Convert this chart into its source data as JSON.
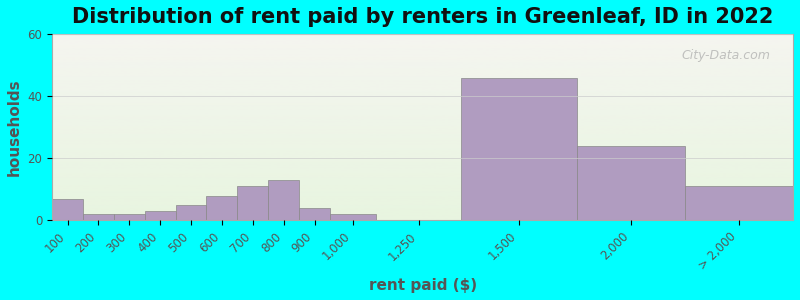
{
  "title": "Distribution of rent paid by renters in Greenleaf, ID in 2022",
  "xlabel": "rent paid ($)",
  "ylabel": "households",
  "background_color": "#00FFFF",
  "plot_bg_gradient_top": "#e8f5e0",
  "plot_bg_gradient_bottom": "#f5f5f0",
  "bar_color": "#b09cc0",
  "bar_edge_color": "#888888",
  "categories": [
    "100",
    "200",
    "300",
    "400",
    "500",
    "600",
    "700",
    "800",
    "900",
    "1,000",
    "1,250",
    "1,500",
    "2,000",
    "> 2,000"
  ],
  "values": [
    7,
    2,
    2,
    3,
    5,
    8,
    11,
    13,
    4,
    2,
    0,
    46,
    24,
    11
  ],
  "bin_edges": [
    50,
    150,
    250,
    350,
    450,
    550,
    650,
    750,
    850,
    950,
    1100,
    1375,
    1750,
    2100,
    2450
  ],
  "xlim": [
    50,
    2450
  ],
  "ylim": [
    0,
    60
  ],
  "yticks": [
    0,
    20,
    40,
    60
  ],
  "title_fontsize": 15,
  "axis_fontsize": 11,
  "tick_fontsize": 8.5,
  "watermark": "City-Data.com"
}
